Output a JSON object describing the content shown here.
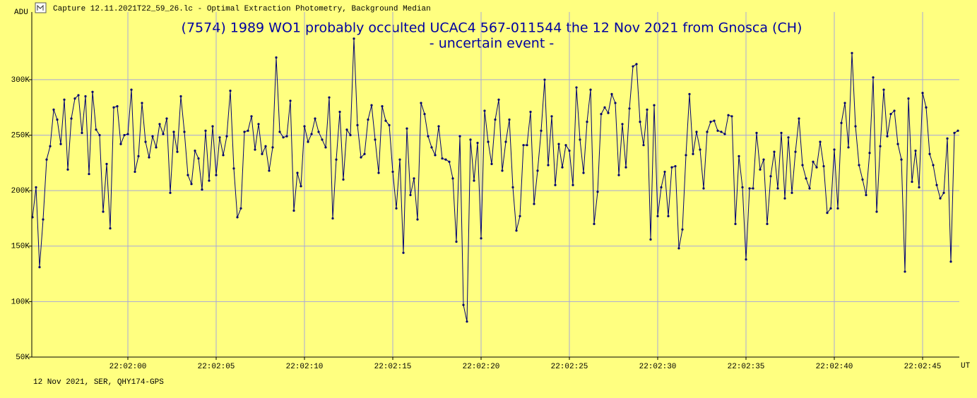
{
  "window_title": "Capture 12.11.2021T22_59_26.lc - Optimal Extraction Photometry, Background Median",
  "chart_data": {
    "type": "line",
    "title": "(7574) 1989 WO1 probably occulted UCAC4 567-011544 the 12 Nov 2021 from Gnosca (CH)",
    "subtitle": "- uncertain event -",
    "y_label": "ADU",
    "x_label": "UT",
    "footer": "12 Nov 2021, SER, QHY174-GPS",
    "grid": true,
    "xlim": [
      -5.44,
      47.08
    ],
    "ylim": [
      50000,
      361000
    ],
    "xticks": [
      {
        "value": 0,
        "label": "22:02:00"
      },
      {
        "value": 5,
        "label": "22:02:05"
      },
      {
        "value": 10,
        "label": "22:02:10"
      },
      {
        "value": 15,
        "label": "22:02:15"
      },
      {
        "value": 20,
        "label": "22:02:20"
      },
      {
        "value": 25,
        "label": "22:02:25"
      },
      {
        "value": 30,
        "label": "22:02:30"
      },
      {
        "value": 35,
        "label": "22:02:35"
      },
      {
        "value": 40,
        "label": "22:02:40"
      },
      {
        "value": 45,
        "label": "22:02:45"
      }
    ],
    "yticks": [
      {
        "value": 50000,
        "label": "50K"
      },
      {
        "value": 100000,
        "label": "100K"
      },
      {
        "value": 150000,
        "label": "150K"
      },
      {
        "value": 200000,
        "label": "200K"
      },
      {
        "value": 250000,
        "label": "250K"
      },
      {
        "value": 300000,
        "label": "300K"
      }
    ],
    "series": [
      {
        "color": "#000070",
        "x": [
          -5.4,
          -5.2,
          -5,
          -4.8,
          -4.6,
          -4.4,
          -4.2,
          -4,
          -3.8,
          -3.6,
          -3.4,
          -3.2,
          -3,
          -2.8,
          -2.6,
          -2.4,
          -2.2,
          -2,
          -1.8,
          -1.6,
          -1.4,
          -1.2,
          -1,
          -0.8,
          -0.6,
          -0.4,
          -0.2,
          0,
          0.2,
          0.4,
          0.6,
          0.8,
          1,
          1.2,
          1.4,
          1.6,
          1.8,
          2,
          2.2,
          2.4,
          2.6,
          2.8,
          3,
          3.2,
          3.4,
          3.6,
          3.8,
          4,
          4.2,
          4.4,
          4.6,
          4.8,
          5,
          5.2,
          5.4,
          5.6,
          5.8,
          6,
          6.2,
          6.4,
          6.6,
          6.8,
          7,
          7.2,
          7.4,
          7.6,
          7.8,
          8,
          8.2,
          8.4,
          8.6,
          8.8,
          9,
          9.2,
          9.4,
          9.6,
          9.8,
          10,
          10.2,
          10.4,
          10.6,
          10.8,
          11,
          11.2,
          11.4,
          11.6,
          11.8,
          12,
          12.2,
          12.4,
          12.6,
          12.8,
          13,
          13.2,
          13.4,
          13.6,
          13.8,
          14,
          14.2,
          14.4,
          14.6,
          14.8,
          15,
          15.2,
          15.4,
          15.6,
          15.8,
          16,
          16.2,
          16.4,
          16.6,
          16.8,
          17,
          17.2,
          17.4,
          17.6,
          17.8,
          18,
          18.2,
          18.4,
          18.6,
          18.8,
          19,
          19.2,
          19.4,
          19.6,
          19.8,
          20,
          20.2,
          20.4,
          20.6,
          20.8,
          21,
          21.2,
          21.4,
          21.6,
          21.8,
          22,
          22.2,
          22.4,
          22.6,
          22.8,
          23,
          23.2,
          23.4,
          23.6,
          23.8,
          24,
          24.2,
          24.4,
          24.6,
          24.8,
          25,
          25.2,
          25.4,
          25.6,
          25.8,
          26,
          26.2,
          26.4,
          26.6,
          26.8,
          27,
          27.2,
          27.4,
          27.6,
          27.8,
          28,
          28.2,
          28.4,
          28.6,
          28.8,
          29,
          29.2,
          29.4,
          29.6,
          29.8,
          30,
          30.2,
          30.4,
          30.6,
          30.8,
          31,
          31.2,
          31.4,
          31.6,
          31.8,
          32,
          32.2,
          32.4,
          32.6,
          32.8,
          33,
          33.2,
          33.4,
          33.6,
          33.8,
          34,
          34.2,
          34.4,
          34.6,
          34.8,
          35,
          35.2,
          35.4,
          35.6,
          35.8,
          36,
          36.2,
          36.4,
          36.6,
          36.8,
          37,
          37.2,
          37.4,
          37.6,
          37.8,
          38,
          38.2,
          38.4,
          38.6,
          38.8,
          39,
          39.2,
          39.4,
          39.6,
          39.8,
          40,
          40.2,
          40.4,
          40.6,
          40.8,
          41,
          41.2,
          41.4,
          41.6,
          41.8,
          42,
          42.2,
          42.4,
          42.6,
          42.8,
          43,
          43.2,
          43.4,
          43.6,
          43.8,
          44,
          44.2,
          44.4,
          44.6,
          44.8,
          45,
          45.2,
          45.4,
          45.6,
          45.8,
          46,
          46.2,
          46.4,
          46.6,
          46.8,
          47
        ],
        "values": [
          176000,
          203000,
          131000,
          174000,
          228000,
          240000,
          273000,
          264000,
          242000,
          282000,
          219000,
          265000,
          283000,
          286000,
          252000,
          285000,
          215000,
          289000,
          255000,
          250000,
          181000,
          224000,
          166000,
          275000,
          276000,
          242000,
          250000,
          251000,
          291000,
          217000,
          231000,
          279000,
          244000,
          230000,
          249000,
          239000,
          260000,
          251000,
          265000,
          198000,
          253000,
          235000,
          285000,
          253000,
          214000,
          206000,
          236000,
          229000,
          201000,
          254000,
          209000,
          258000,
          214000,
          248000,
          232000,
          249000,
          290000,
          220000,
          176000,
          184000,
          253000,
          254000,
          267000,
          237000,
          260000,
          233000,
          240000,
          218000,
          239000,
          320000,
          253000,
          248000,
          249000,
          281000,
          182000,
          216000,
          204000,
          258000,
          244000,
          251000,
          265000,
          253000,
          246000,
          239000,
          284000,
          175000,
          228000,
          271000,
          210000,
          255000,
          250000,
          337000,
          259000,
          230000,
          233000,
          264000,
          277000,
          246000,
          216000,
          276000,
          263000,
          259000,
          217000,
          184000,
          228000,
          144000,
          256000,
          196000,
          211000,
          174000,
          279000,
          269000,
          249000,
          239000,
          232000,
          258000,
          229000,
          228000,
          226000,
          211000,
          154000,
          249000,
          97000,
          82000,
          246000,
          209000,
          243000,
          157000,
          272000,
          244000,
          224000,
          264000,
          282000,
          218000,
          244000,
          264000,
          203000,
          164000,
          177000,
          241000,
          241000,
          271000,
          188000,
          218000,
          254000,
          300000,
          223000,
          267000,
          205000,
          242000,
          221000,
          241000,
          236000,
          205000,
          293000,
          246000,
          216000,
          262000,
          291000,
          170000,
          199000,
          269000,
          275000,
          270000,
          287000,
          279000,
          214000,
          260000,
          221000,
          274000,
          312000,
          314000,
          262000,
          241000,
          273000,
          156000,
          277000,
          177000,
          203000,
          217000,
          177000,
          221000,
          222000,
          148000,
          165000,
          232000,
          287000,
          233000,
          253000,
          237000,
          202000,
          253000,
          262000,
          263000,
          254000,
          253000,
          251000,
          268000,
          267000,
          170000,
          231000,
          203000,
          138000,
          202000,
          202000,
          252000,
          219000,
          228000,
          170000,
          213000,
          235000,
          202000,
          252000,
          193000,
          248000,
          198000,
          235000,
          265000,
          223000,
          211000,
          202000,
          226000,
          221000,
          244000,
          222000,
          180000,
          184000,
          237000,
          184000,
          261000,
          279000,
          239000,
          324000,
          258000,
          223000,
          210000,
          196000,
          234000,
          302000,
          181000,
          240000,
          291000,
          249000,
          269000,
          272000,
          242000,
          228000,
          127000,
          283000,
          208000,
          236000,
          203000,
          288000,
          275000,
          233000,
          223000,
          205000,
          193000,
          198000,
          247000,
          136000,
          252000,
          254000
        ]
      }
    ]
  }
}
